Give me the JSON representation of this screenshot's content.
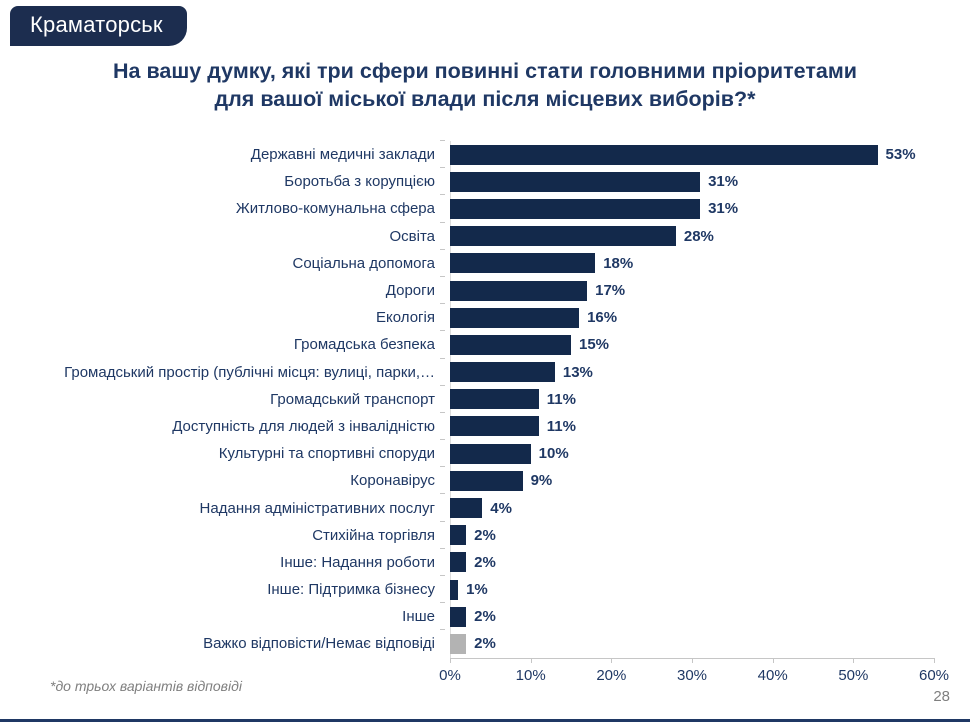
{
  "slide": {
    "badge_label": "Краматорськ",
    "title_line1": "На вашу думку, які три сфери повинні стати головними пріоритетами",
    "title_line2": "для  вашої міської влади після місцевих виборів?*",
    "footnote": "*до трьох варіантів відповіді",
    "page_number": "28"
  },
  "colors": {
    "bar": "#13294B",
    "bar_no_answer": "#B3B3B3",
    "text_navy": "#1F3864",
    "badge_bg": "#1C2D4F",
    "axis_gray": "#C6C6C6",
    "muted_text_gray": "#7F7F7F"
  },
  "chart_data": {
    "type": "bar",
    "orientation": "horizontal",
    "title": "",
    "xlabel": "",
    "ylabel": "",
    "xlim": [
      0,
      60
    ],
    "x_tick_labels": [
      "0%",
      "10%",
      "20%",
      "30%",
      "40%",
      "50%",
      "60%"
    ],
    "x_tick_values": [
      0,
      10,
      20,
      30,
      40,
      50,
      60
    ],
    "legend": "none",
    "grid": "axis-ticks-only",
    "unit": "%",
    "categories": [
      "Державні медичні заклади",
      "Боротьба з корупцією",
      "Житлово-комунальна сфера",
      "Освіта",
      "Соціальна допомога",
      "Дороги",
      "Екологія",
      "Громадська безпека",
      "Громадський простір (публічні місця: вулиці, парки,…",
      "Громадський транспорт",
      "Доступність для людей з інвалідністю",
      "Культурні та спортивні споруди",
      "Коронавірус",
      "Надання адміністративних послуг",
      "Стихійна торгівля",
      "Інше: Надання роботи",
      "Інше: Підтримка бізнесу",
      "Інше",
      "Важко відповісти/Немає відповіді"
    ],
    "values": [
      53,
      31,
      31,
      28,
      18,
      17,
      16,
      15,
      13,
      11,
      11,
      10,
      9,
      4,
      2,
      2,
      1,
      2,
      2
    ],
    "value_labels": [
      "53%",
      "31%",
      "31%",
      "28%",
      "18%",
      "17%",
      "16%",
      "15%",
      "13%",
      "11%",
      "11%",
      "10%",
      "9%",
      "4%",
      "2%",
      "2%",
      "1%",
      "2%",
      "2%"
    ],
    "muted_category_index": 18
  }
}
